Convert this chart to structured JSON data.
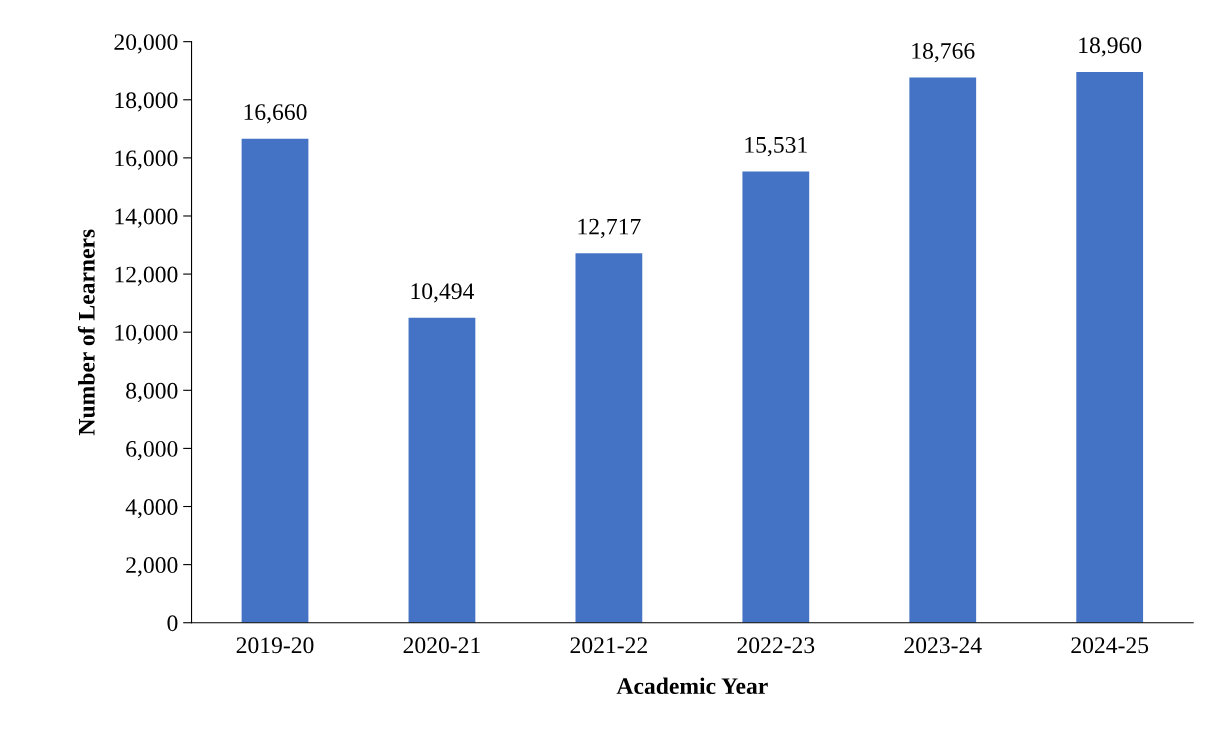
{
  "chart_data": {
    "type": "bar",
    "xlabel": "Academic Year",
    "ylabel": "Number of Learners",
    "categories": [
      "2019-20",
      "2020-21",
      "2021-22",
      "2022-23",
      "2023-24",
      "2024-25"
    ],
    "values": [
      16660,
      10494,
      12717,
      15531,
      18766,
      18960
    ],
    "color": "#4472c4",
    "ylim": [
      0,
      20000
    ],
    "yticks": [
      {
        "value": 0,
        "label": "0"
      },
      {
        "value": 2000,
        "label": "2,000"
      },
      {
        "value": 4000,
        "label": "4,000"
      },
      {
        "value": 6000,
        "label": "6,000"
      },
      {
        "value": 8000,
        "label": "8,000"
      },
      {
        "value": 10000,
        "label": "10,000"
      },
      {
        "value": 12000,
        "label": "12,000"
      },
      {
        "value": 14000,
        "label": "14,000"
      },
      {
        "value": 16000,
        "label": "16,000"
      },
      {
        "value": 18000,
        "label": "18,000"
      },
      {
        "value": 20000,
        "label": "20,000"
      }
    ],
    "value_labels": [
      "16,660",
      "10,494",
      "12,717",
      "15,531",
      "18,766",
      "18,960"
    ],
    "grid": false,
    "legend": false
  }
}
